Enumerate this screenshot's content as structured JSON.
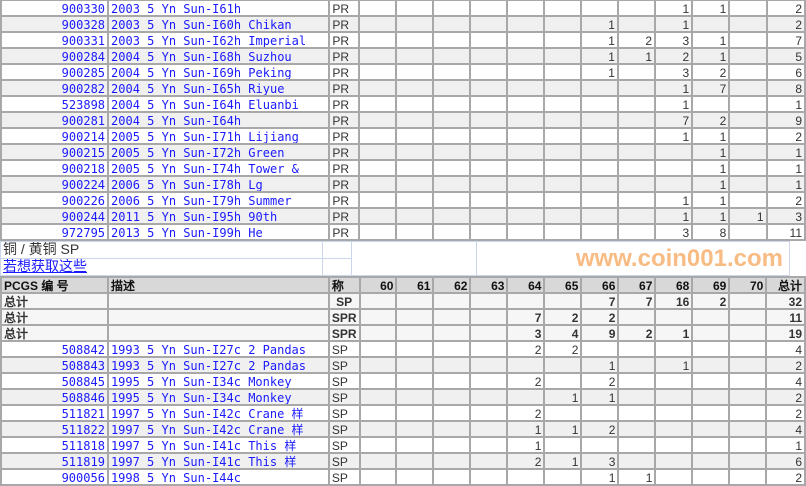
{
  "section1": {
    "designation": "PR",
    "rows": [
      {
        "code": "900330",
        "desc": "2003 5 Yn Sun-I61h",
        "grades": [
          "",
          "",
          "",
          "",
          "",
          "",
          "",
          "",
          "1",
          "1",
          ""
        ],
        "total": "2"
      },
      {
        "code": "900328",
        "desc": "2003 5 Yn Sun-I60h Chikan",
        "grades": [
          "",
          "",
          "",
          "",
          "",
          "",
          "1",
          "",
          "1",
          "",
          ""
        ],
        "total": "2"
      },
      {
        "code": "900331",
        "desc": "2003 5 Yn Sun-I62h Imperial",
        "grades": [
          "",
          "",
          "",
          "",
          "",
          "",
          "1",
          "2",
          "3",
          "1",
          ""
        ],
        "total": "7"
      },
      {
        "code": "900284",
        "desc": "2004 5 Yn Sun-I68h Suzhou",
        "grades": [
          "",
          "",
          "",
          "",
          "",
          "",
          "1",
          "1",
          "2",
          "1",
          ""
        ],
        "total": "5"
      },
      {
        "code": "900285",
        "desc": "2004 5 Yn Sun-I69h Peking",
        "grades": [
          "",
          "",
          "",
          "",
          "",
          "",
          "1",
          "",
          "3",
          "2",
          ""
        ],
        "total": "6"
      },
      {
        "code": "900282",
        "desc": "2004 5 Yn Sun-I65h Riyue",
        "grades": [
          "",
          "",
          "",
          "",
          "",
          "",
          "",
          "",
          "1",
          "7",
          ""
        ],
        "total": "8"
      },
      {
        "code": "523898",
        "desc": "2004 5 Yn Sun-I64h Eluanbi",
        "grades": [
          "",
          "",
          "",
          "",
          "",
          "",
          "",
          "",
          "1",
          "",
          ""
        ],
        "total": "1"
      },
      {
        "code": "900281",
        "desc": "2004 5 Yn Sun-I64h",
        "grades": [
          "",
          "",
          "",
          "",
          "",
          "",
          "",
          "",
          "7",
          "2",
          ""
        ],
        "total": "9"
      },
      {
        "code": "900214",
        "desc": "2005 5 Yn Sun-I71h Lijiang",
        "grades": [
          "",
          "",
          "",
          "",
          "",
          "",
          "",
          "",
          "1",
          "1",
          ""
        ],
        "total": "2"
      },
      {
        "code": "900215",
        "desc": "2005 5 Yn Sun-I72h Green",
        "grades": [
          "",
          "",
          "",
          "",
          "",
          "",
          "",
          "",
          "",
          "1",
          ""
        ],
        "total": "1"
      },
      {
        "code": "900218",
        "desc": "2005 5 Yn Sun-I74h Tower &",
        "grades": [
          "",
          "",
          "",
          "",
          "",
          "",
          "",
          "",
          "",
          "1",
          ""
        ],
        "total": "1"
      },
      {
        "code": "900224",
        "desc": "2006 5 Yn Sun-I78h Lg",
        "grades": [
          "",
          "",
          "",
          "",
          "",
          "",
          "",
          "",
          "",
          "1",
          ""
        ],
        "total": "1"
      },
      {
        "code": "900226",
        "desc": "2006 5 Yn Sun-I79h Summer",
        "grades": [
          "",
          "",
          "",
          "",
          "",
          "",
          "",
          "",
          "1",
          "1",
          ""
        ],
        "total": "2"
      },
      {
        "code": "900244",
        "desc": "2011 5 Yn Sun-I95h 90th",
        "grades": [
          "",
          "",
          "",
          "",
          "",
          "",
          "",
          "",
          "1",
          "1",
          "1"
        ],
        "total": "3"
      },
      {
        "code": "972795",
        "desc": "2013 5 Yn Sun-I99h He",
        "grades": [
          "",
          "",
          "",
          "",
          "",
          "",
          "",
          "",
          "3",
          "8",
          ""
        ],
        "total": "11"
      }
    ]
  },
  "section2": {
    "title": "铜 / 黄铜  SP",
    "link": "若想获取这些",
    "header": {
      "code": "PCGS 编 号",
      "desc": "描述",
      "designation": "称",
      "grades": [
        "60",
        "61",
        "62",
        "63",
        "64",
        "65",
        "66",
        "67",
        "68",
        "69",
        "70"
      ],
      "total": "总计"
    },
    "totals": [
      {
        "label": "总计",
        "designation": "SP",
        "grades": [
          "",
          "",
          "",
          "",
          "",
          "",
          "7",
          "7",
          "16",
          "2",
          ""
        ],
        "total": "32"
      },
      {
        "label": "总计",
        "designation": "SPR",
        "grades": [
          "",
          "",
          "",
          "",
          "7",
          "2",
          "2",
          "",
          "",
          "",
          ""
        ],
        "total": "11"
      },
      {
        "label": "总计",
        "designation": "SPR",
        "grades": [
          "",
          "",
          "",
          "",
          "3",
          "4",
          "9",
          "2",
          "1",
          "",
          ""
        ],
        "total": "19"
      }
    ],
    "rows": [
      {
        "code": "508842",
        "desc": "1993 5 Yn Sun-I27c 2 Pandas",
        "designation": "SP",
        "grades": [
          "",
          "",
          "",
          "",
          "2",
          "2",
          "",
          "",
          "",
          "",
          ""
        ],
        "total": "4"
      },
      {
        "code": "508843",
        "desc": "1993 5 Yn Sun-I27c 2 Pandas",
        "designation": "SP",
        "grades": [
          "",
          "",
          "",
          "",
          "",
          "",
          "1",
          "",
          "1",
          "",
          ""
        ],
        "total": "2"
      },
      {
        "code": "508845",
        "desc": "1995 5 Yn Sun-I34c Monkey",
        "designation": "SP",
        "grades": [
          "",
          "",
          "",
          "",
          "2",
          "",
          "2",
          "",
          "",
          "",
          ""
        ],
        "total": "4"
      },
      {
        "code": "508846",
        "desc": "1995 5 Yn Sun-I34c Monkey",
        "designation": "SP",
        "grades": [
          "",
          "",
          "",
          "",
          "",
          "1",
          "1",
          "",
          "",
          "",
          ""
        ],
        "total": "2"
      },
      {
        "code": "511821",
        "desc": "1997 5 Yn Sun-I42c Crane 样",
        "designation": "SP",
        "grades": [
          "",
          "",
          "",
          "",
          "2",
          "",
          "",
          "",
          "",
          "",
          ""
        ],
        "total": "2"
      },
      {
        "code": "511822",
        "desc": "1997 5 Yn Sun-I42c Crane 样",
        "designation": "SP",
        "grades": [
          "",
          "",
          "",
          "",
          "1",
          "1",
          "2",
          "",
          "",
          "",
          ""
        ],
        "total": "4"
      },
      {
        "code": "511818",
        "desc": "1997 5 Yn Sun-I41c This 样",
        "designation": "SP",
        "grades": [
          "",
          "",
          "",
          "",
          "1",
          "",
          "",
          "",
          "",
          "",
          ""
        ],
        "total": "1"
      },
      {
        "code": "511819",
        "desc": "1997 5 Yn Sun-I41c This 样",
        "designation": "SP",
        "grades": [
          "",
          "",
          "",
          "",
          "2",
          "1",
          "3",
          "",
          "",
          "",
          ""
        ],
        "total": "6"
      },
      {
        "code": "900056",
        "desc": "1998 5 Yn Sun-I44c",
        "designation": "SP",
        "grades": [
          "",
          "",
          "",
          "",
          "",
          "",
          "1",
          "1",
          "",
          "",
          ""
        ],
        "total": "2"
      }
    ]
  },
  "watermark": "www.coin001.com",
  "colors": {
    "link": "#1a1aff",
    "grid": "#a8a8a8",
    "header_bg": "#d8d8d8",
    "alt_row": "#f0f0f0",
    "watermark": "#f6a55a"
  }
}
